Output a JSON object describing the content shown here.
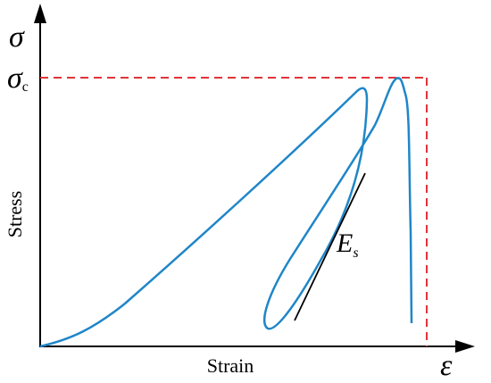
{
  "labels": {
    "y_axis_symbol": "σ",
    "peak_symbol": "σ",
    "peak_subscript": "c",
    "y_axis": "Stress",
    "x_axis": "Strain",
    "x_axis_symbol": "ε",
    "modulus_symbol": "E",
    "modulus_subscript": "s"
  }
}
